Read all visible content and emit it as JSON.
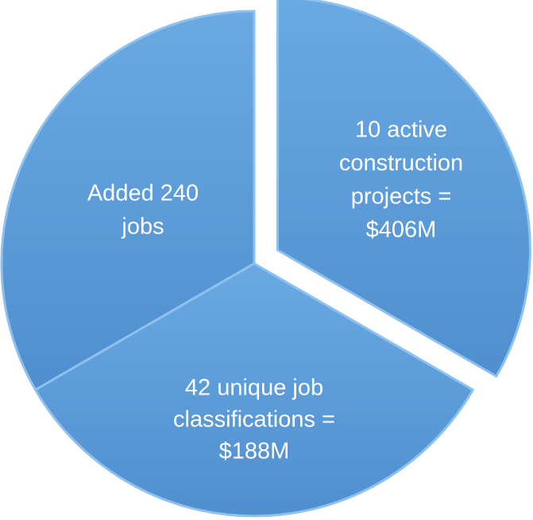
{
  "segments": [
    {
      "lines": [
        "Added 240",
        "jobs"
      ]
    },
    {
      "lines": [
        "10 active",
        "construction",
        "projects =",
        "$406M"
      ]
    },
    {
      "lines": [
        "42 unique job",
        "classifications =",
        "$188M"
      ]
    }
  ]
}
